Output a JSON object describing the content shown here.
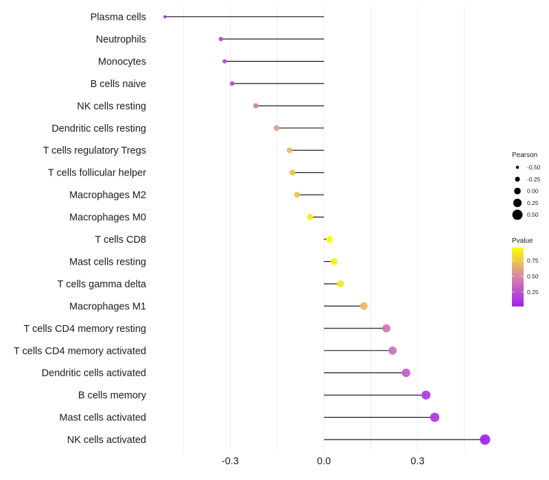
{
  "chart_data": {
    "type": "lollipop",
    "title": "",
    "xlabel": "",
    "ylabel": "",
    "xlim": [
      -0.535,
      0.58
    ],
    "x_ticks": [
      -0.3,
      0.0,
      0.3
    ],
    "x_tick_labels": [
      "-0.3",
      "0.0",
      "0.3"
    ],
    "x_minor_gridlines": [
      -0.45,
      -0.15,
      0.15,
      0.45
    ],
    "grid": true,
    "categories": [
      "Plasma cells",
      "Neutrophils",
      "Monocytes",
      "B cells naive",
      "NK cells resting",
      "Dendritic cells resting",
      "T cells regulatory  Tregs ",
      "T cells follicular helper",
      "Macrophages M2",
      "Macrophages M0",
      "T cells CD8",
      "Mast cells resting",
      "T cells gamma delta",
      "Macrophages M1",
      "T cells CD4 memory resting",
      "T cells CD4 memory activated",
      "Dendritic cells activated",
      "B cells memory",
      "Mast cells activated",
      "NK cells activated"
    ],
    "series": [
      {
        "name": "Pearson",
        "values": [
          -0.509,
          -0.33,
          -0.318,
          -0.294,
          -0.218,
          -0.152,
          -0.11,
          -0.101,
          -0.086,
          -0.044,
          0.018,
          0.033,
          0.053,
          0.128,
          0.2,
          0.22,
          0.263,
          0.327,
          0.355,
          0.516
        ]
      },
      {
        "name": "Pvalue",
        "values": [
          0.04,
          0.18,
          0.2,
          0.22,
          0.45,
          0.6,
          0.7,
          0.72,
          0.74,
          0.88,
          0.95,
          0.9,
          0.87,
          0.7,
          0.42,
          0.4,
          0.3,
          0.15,
          0.12,
          0.02
        ]
      }
    ],
    "legend_size": {
      "title": "Pearson",
      "values": [
        -0.5,
        -0.25,
        0.0,
        0.25,
        0.5
      ],
      "labels": [
        "-0.50",
        "-0.25",
        "0.00",
        "0.25",
        "0.50"
      ],
      "placement": "right"
    },
    "legend_color": {
      "title": "Pvalue",
      "ticks": [
        0.25,
        0.5,
        0.75
      ],
      "tick_labels": [
        "0.25",
        "0.50",
        "0.75"
      ],
      "range": [
        0.02,
        0.96
      ],
      "low_color": "#A020F0",
      "mid_color": "#D883A8",
      "high_color": "#FFFF00",
      "placement": "right"
    },
    "segment_color": "#000000",
    "gridline_color": "#ebebeb"
  }
}
